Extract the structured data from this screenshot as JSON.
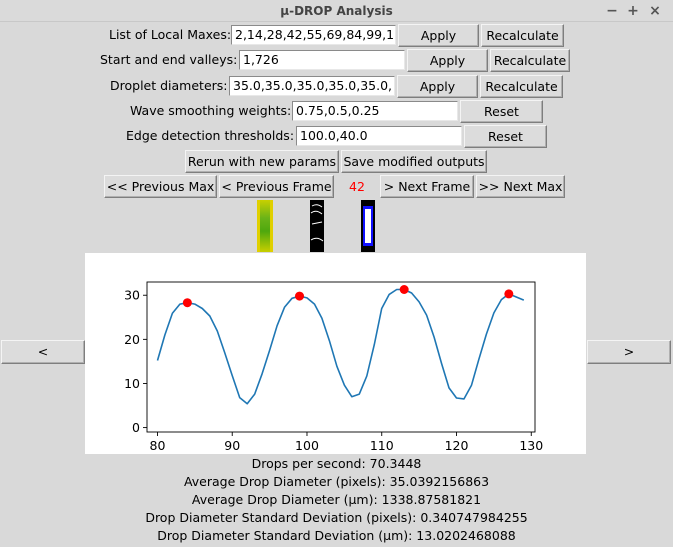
{
  "window": {
    "title": "µ-DROP Analysis",
    "minimize": "−",
    "maximize": "+",
    "close": "×"
  },
  "params": [
    {
      "label": "List of Local Maxes:",
      "value": "2,14,28,42,55,69,84,99,1",
      "apply": "Apply",
      "recalc": "Recalculate"
    },
    {
      "label": "Start and end valleys:",
      "value": "1,726",
      "apply": "Apply",
      "recalc": "Recalculate"
    },
    {
      "label": "Droplet diameters:",
      "value": "35.0,35.0,35.0,35.0,35.0,",
      "apply": "Apply",
      "recalc": "Recalculate"
    },
    {
      "label": "Wave smoothing weights:",
      "value": "0.75,0.5,0.25",
      "reset": "Reset"
    },
    {
      "label": "Edge detection thresholds:",
      "value": "100.0,40.0",
      "reset": "Reset"
    }
  ],
  "actions": {
    "rerun": "Rerun with new params",
    "save": "Save modified outputs"
  },
  "nav": {
    "prev_max": "<< Previous Max",
    "prev_frame": "< Previous Frame",
    "frame": "42",
    "next_frame": "> Next Frame",
    "next_max": ">> Next Max"
  },
  "side": {
    "left": "<",
    "right": ">"
  },
  "chart_data": {
    "type": "line",
    "x": [
      80,
      81,
      82,
      83,
      84,
      85,
      86,
      87,
      88,
      89,
      90,
      91,
      92,
      93,
      94,
      95,
      96,
      97,
      98,
      99,
      100,
      101,
      102,
      103,
      104,
      105,
      106,
      107,
      108,
      109,
      110,
      111,
      112,
      113,
      114,
      115,
      116,
      117,
      118,
      119,
      120,
      121,
      122,
      123,
      124,
      125,
      126,
      127,
      128,
      129
    ],
    "y": [
      15.2,
      21.0,
      25.9,
      28.0,
      28.3,
      28.0,
      27.0,
      25.3,
      21.9,
      17.0,
      11.8,
      6.8,
      5.4,
      7.6,
      12.2,
      17.5,
      23.1,
      27.3,
      29.3,
      29.8,
      29.4,
      28.0,
      24.8,
      19.7,
      13.9,
      9.6,
      7.0,
      7.6,
      11.7,
      18.8,
      27.0,
      30.2,
      31.3,
      31.3,
      30.5,
      28.5,
      25.5,
      20.5,
      14.5,
      9.0,
      6.7,
      6.5,
      9.6,
      15.5,
      21.2,
      26.0,
      29.0,
      30.3,
      29.6,
      28.9
    ],
    "maxima": [
      {
        "x": 84,
        "y": 28.3
      },
      {
        "x": 99,
        "y": 29.8
      },
      {
        "x": 113,
        "y": 31.3
      },
      {
        "x": 127,
        "y": 30.3
      }
    ],
    "xlim": [
      78.6,
      130.5
    ],
    "ylim": [
      -1,
      33
    ],
    "xticks": [
      80,
      90,
      100,
      110,
      120,
      130
    ],
    "yticks": [
      0,
      10,
      20,
      30
    ],
    "line_color": "#1f77b4",
    "marker_color": "#ff0000"
  },
  "stats": {
    "dps": "Drops per second: 70.3448",
    "avg_px": "Average Drop Diameter (pixels): 35.0392156863",
    "avg_um": "Average Drop Diameter (µm): 1338.87581821",
    "sd_px": "Drop Diameter Standard Deviation (pixels): 0.340747984255",
    "sd_um": "Drop Diameter Standard Deviation (µm): 13.0202468088"
  }
}
